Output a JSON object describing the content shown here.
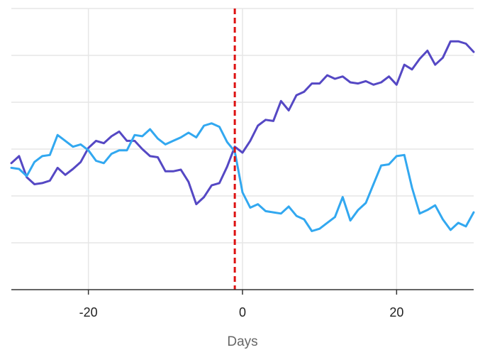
{
  "chart_data": {
    "type": "line",
    "title": "",
    "xlabel": "Days",
    "ylabel": "",
    "xlim": [
      -30,
      30
    ],
    "ylim": [
      -6,
      6
    ],
    "xticks": [
      -20,
      0,
      20
    ],
    "xtick_labels": [
      "-20",
      "0",
      "20"
    ],
    "yticks": [
      -6,
      -4,
      -2,
      0,
      2,
      4,
      6
    ],
    "grid": true,
    "legend": "none",
    "vline": {
      "x": -1,
      "style": "dashed",
      "color": "#dd1111"
    },
    "x": [
      -30,
      -29,
      -28,
      -27,
      -26,
      -25,
      -24,
      -23,
      -22,
      -21,
      -20,
      -19,
      -18,
      -17,
      -16,
      -15,
      -14,
      -13,
      -12,
      -11,
      -10,
      -9,
      -8,
      -7,
      -6,
      -5,
      -4,
      -3,
      -2,
      -1,
      0,
      1,
      2,
      3,
      4,
      5,
      6,
      7,
      8,
      9,
      10,
      11,
      12,
      13,
      14,
      15,
      16,
      17,
      18,
      19,
      20,
      21,
      22,
      23,
      24,
      25,
      26,
      27,
      28,
      29,
      30
    ],
    "series": [
      {
        "color": "#5548c4",
        "values": [
          -0.6,
          -0.3,
          -1.2,
          -1.5,
          -1.45,
          -1.35,
          -0.8,
          -1.1,
          -0.85,
          -0.55,
          0.05,
          0.35,
          0.25,
          0.55,
          0.75,
          0.35,
          0.35,
          0.0,
          -0.3,
          -0.35,
          -0.95,
          -0.95,
          -0.88,
          -1.4,
          -2.35,
          -2.05,
          -1.55,
          -1.45,
          -0.75,
          0.1,
          -0.15,
          0.35,
          1.0,
          1.25,
          1.2,
          2.05,
          1.65,
          2.3,
          2.45,
          2.8,
          2.8,
          3.15,
          3.0,
          3.1,
          2.85,
          2.8,
          2.9,
          2.75,
          2.85,
          3.1,
          2.75,
          3.6,
          3.4,
          3.85,
          4.2,
          3.6,
          3.9,
          4.6,
          4.6,
          4.5,
          4.15
        ]
      },
      {
        "color": "#32a8f0",
        "values": [
          -0.8,
          -0.85,
          -1.15,
          -0.55,
          -0.3,
          -0.25,
          0.6,
          0.35,
          0.1,
          0.2,
          -0.05,
          -0.5,
          -0.6,
          -0.2,
          -0.05,
          -0.05,
          0.6,
          0.55,
          0.85,
          0.45,
          0.2,
          0.35,
          0.5,
          0.7,
          0.5,
          1.0,
          1.1,
          0.95,
          0.3,
          -0.1,
          -1.85,
          -2.5,
          -2.35,
          -2.65,
          -2.7,
          -2.75,
          -2.45,
          -2.85,
          -3.0,
          -3.5,
          -3.4,
          -3.15,
          -2.9,
          -2.05,
          -3.05,
          -2.6,
          -2.3,
          -1.5,
          -0.7,
          -0.65,
          -0.3,
          -0.25,
          -1.65,
          -2.75,
          -2.6,
          -2.4,
          -3.0,
          -3.45,
          -3.15,
          -3.3,
          -2.7
        ]
      }
    ]
  }
}
